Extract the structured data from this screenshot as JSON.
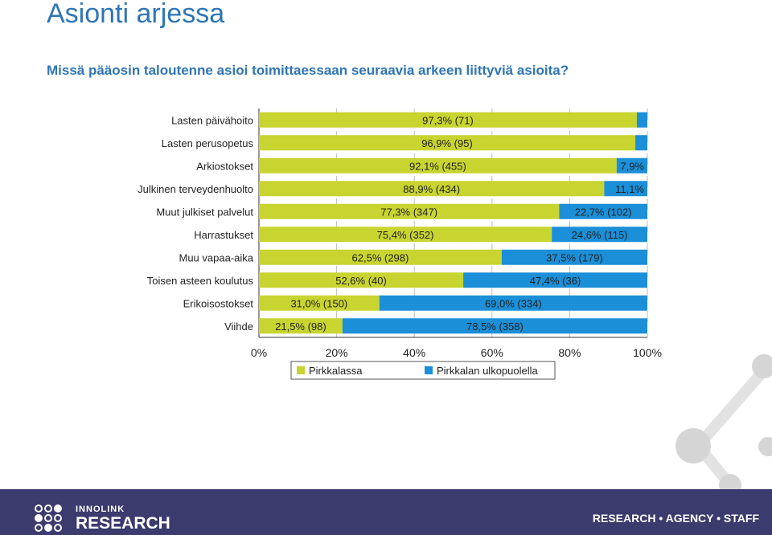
{
  "slide": {
    "title": "Asionti arjessa",
    "subtitle": "Missä pääosin taloutenne asioi toimittaessaan seuraavia arkeen liittyviä asioita?",
    "footer_brand_top": "INNOLINK",
    "footer_brand_bottom": "RESEARCH",
    "footer_tagline": "RESEARCH • AGENCY • STAFF"
  },
  "colors": {
    "series_1": "#c8d42f",
    "series_2": "#1b8fd8",
    "footer_bg": "#3b3b6e",
    "title": "#2e75b6"
  },
  "chart_data": {
    "type": "bar",
    "orientation": "horizontal",
    "stacked": true,
    "categories": [
      "Lasten päivähoito",
      "Lasten perusopetus",
      "Arkiostokset",
      "Julkinen terveydenhuolto",
      "Muut julkiset palvelut",
      "Harrastukset",
      "Muu vapaa-aika",
      "Toisen asteen koulutus",
      "Erikoisostokset",
      "Viihde"
    ],
    "series": [
      {
        "name": "Pirkkalassa",
        "values": [
          97.3,
          96.9,
          92.1,
          88.9,
          77.3,
          75.4,
          62.5,
          52.6,
          31.0,
          21.5
        ],
        "labels": [
          "97,3% (71)",
          "96,9% (95)",
          "92,1% (455)",
          "88,9% (434)",
          "77,3% (347)",
          "75,4% (352)",
          "62,5% (298)",
          "52,6% (40)",
          "31,0% (150)",
          "21,5% (98)"
        ]
      },
      {
        "name": "Pirkkalan ulkopuolella",
        "values": [
          2.7,
          3.1,
          7.9,
          11.1,
          22.7,
          24.6,
          37.5,
          47.4,
          69.0,
          78.5
        ],
        "labels": [
          "",
          "",
          "7,9%",
          "11,1%",
          "22,7% (102)",
          "24,6% (115)",
          "37,5% (179)",
          "47,4% (36)",
          "69,0% (334)",
          "78,5% (358)"
        ]
      }
    ],
    "x_ticks": [
      "0%",
      "20%",
      "40%",
      "60%",
      "80%",
      "100%"
    ],
    "xlim": [
      0,
      100
    ],
    "legend_position": "bottom",
    "grid": true
  }
}
